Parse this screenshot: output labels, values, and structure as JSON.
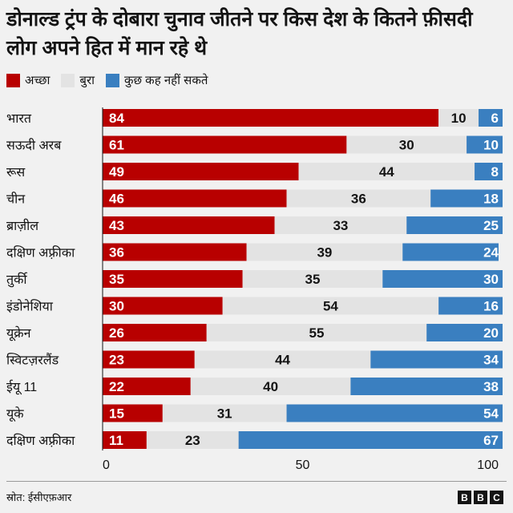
{
  "chart_data": {
    "type": "bar",
    "stacked": true,
    "orientation": "horizontal",
    "title": "डोनाल्ड ट्रंप के दोबारा चुनाव जीतने पर किस देश के कितने फ़ीसदी लोग अपने हित में मान रहे थे",
    "categories": [
      "भारत",
      "सऊदी अरब",
      "रूस",
      "चीन",
      "ब्राज़ील",
      "दक्षिण अफ़्रीका",
      "तुर्की",
      "इंडोनेशिया",
      "यूक्रेन",
      "स्विटज़रलैंड",
      "ईयू 11",
      "यूके",
      "दक्षिण अफ़्रीका"
    ],
    "series": [
      {
        "name": "अच्छा",
        "color": "#b80000",
        "values": [
          84,
          61,
          49,
          46,
          43,
          36,
          35,
          30,
          26,
          23,
          22,
          15,
          11
        ]
      },
      {
        "name": "बुरा",
        "color": "#e3e3e3",
        "values": [
          10,
          30,
          44,
          36,
          33,
          39,
          35,
          54,
          55,
          44,
          40,
          31,
          23
        ]
      },
      {
        "name": "कुछ कह नहीं सकते",
        "color": "#3a7fc0",
        "values": [
          6,
          10,
          8,
          18,
          25,
          24,
          30,
          16,
          20,
          34,
          38,
          54,
          67
        ]
      }
    ],
    "xlim": [
      0,
      100
    ],
    "xticks": [
      "0",
      "50",
      "100"
    ],
    "legend": "top-left",
    "grid": false
  },
  "source": "स्रोत: ईसीएफ़आर",
  "logo": "BBC"
}
